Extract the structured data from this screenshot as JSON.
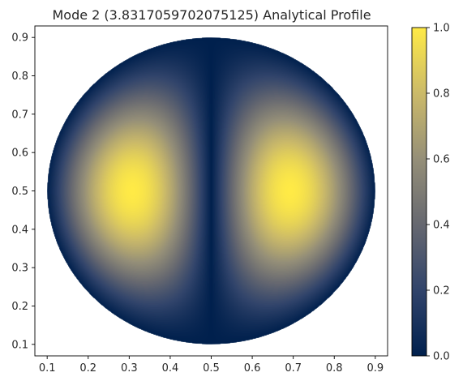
{
  "chart_data": {
    "type": "heatmap",
    "title": "Mode 2 (3.8317059702075125) Analytical Profile",
    "xlabel": "",
    "ylabel": "",
    "xlim": [
      0.07,
      0.93
    ],
    "ylim": [
      0.07,
      0.93
    ],
    "x_ticks": [
      "0.1",
      "0.2",
      "0.3",
      "0.4",
      "0.5",
      "0.6",
      "0.7",
      "0.8",
      "0.9"
    ],
    "y_ticks": [
      "0.1",
      "0.2",
      "0.3",
      "0.4",
      "0.5",
      "0.6",
      "0.7",
      "0.8",
      "0.9"
    ],
    "x_tick_values": [
      0.1,
      0.2,
      0.3,
      0.4,
      0.5,
      0.6,
      0.7,
      0.8,
      0.9
    ],
    "y_tick_values": [
      0.1,
      0.2,
      0.3,
      0.4,
      0.5,
      0.6,
      0.7,
      0.8,
      0.9
    ],
    "domain": {
      "shape": "disk",
      "center": [
        0.5,
        0.5
      ],
      "radius": 0.4
    },
    "field": "abs(J1(3.8317059702075125 * r / R) * cos(theta)), normalized",
    "peak_locations": [
      [
        0.3,
        0.5
      ],
      [
        0.7,
        0.5
      ]
    ],
    "nodal_line": "x = 0.5",
    "colormap": "cividis",
    "colormap_stops": [
      "#00204d",
      "#31446b",
      "#666870",
      "#958f78",
      "#cbba69",
      "#ffea46"
    ],
    "colorbar": {
      "range": [
        0.0,
        1.0
      ],
      "ticks": [
        "0.0",
        "0.2",
        "0.4",
        "0.6",
        "0.8",
        "1.0"
      ],
      "tick_values": [
        0.0,
        0.2,
        0.4,
        0.6,
        0.8,
        1.0
      ]
    },
    "grid": false,
    "legend": "none"
  }
}
